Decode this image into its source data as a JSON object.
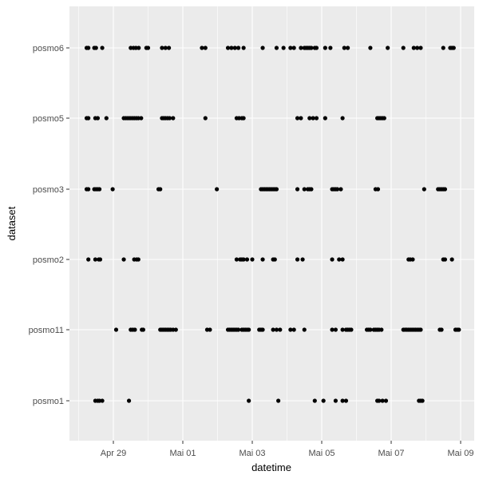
{
  "chart_data": {
    "type": "scatter",
    "title": "",
    "xlabel": "datetime",
    "ylabel": "dataset",
    "x_ticks": [
      "Apr 29",
      "Mai 01",
      "Mai 03",
      "Mai 05",
      "Mai 07",
      "Mai 09"
    ],
    "x_tick_days": [
      0,
      2,
      4,
      6,
      8,
      10
    ],
    "xlim_days": [
      -1.05,
      10.2
    ],
    "categories": [
      "posmo1",
      "posmo11",
      "posmo2",
      "posmo3",
      "posmo5",
      "posmo6"
    ],
    "grid": true,
    "legend": "none",
    "colors": {
      "panel": "#ebebeb",
      "grid": "#ffffff",
      "point": "#000000",
      "tick_text": "#4d4d4d",
      "axis_title": "#000000"
    },
    "series": [
      {
        "category": "posmo6",
        "x": [
          -0.77,
          -0.72,
          -0.55,
          -0.5,
          -0.32,
          0.5,
          0.58,
          0.65,
          0.73,
          0.95,
          1.0,
          1.4,
          1.5,
          1.6,
          2.55,
          2.65,
          3.3,
          3.4,
          3.5,
          3.6,
          3.75,
          4.3,
          4.7,
          4.9,
          5.1,
          5.2,
          5.4,
          5.5,
          5.55,
          5.6,
          5.65,
          5.7,
          5.8,
          5.85,
          6.1,
          6.25,
          6.65,
          6.75,
          7.4,
          7.9,
          8.35,
          8.65,
          8.75,
          8.85,
          9.5,
          9.7,
          9.75,
          9.8
        ]
      },
      {
        "category": "posmo5",
        "x": [
          -0.77,
          -0.72,
          -0.52,
          -0.45,
          -0.2,
          0.3,
          0.36,
          0.42,
          0.48,
          0.54,
          0.6,
          0.66,
          0.72,
          0.8,
          1.4,
          1.45,
          1.5,
          1.56,
          1.62,
          1.72,
          2.65,
          3.55,
          3.62,
          3.7,
          3.75,
          5.3,
          5.4,
          5.65,
          5.75,
          5.85,
          6.1,
          6.6,
          7.6,
          7.65,
          7.7,
          7.75,
          7.8
        ]
      },
      {
        "category": "posmo3",
        "x": [
          -0.77,
          -0.72,
          -0.55,
          -0.5,
          -0.45,
          -0.4,
          -0.02,
          1.3,
          1.35,
          2.98,
          4.25,
          4.3,
          4.35,
          4.4,
          4.45,
          4.5,
          4.55,
          4.6,
          4.65,
          4.7,
          5.3,
          5.5,
          5.6,
          5.65,
          5.7,
          6.3,
          6.35,
          6.4,
          6.45,
          6.55,
          7.55,
          7.62,
          8.95,
          9.35,
          9.4,
          9.45,
          9.5,
          9.55
        ]
      },
      {
        "category": "posmo2",
        "x": [
          -0.72,
          -0.52,
          -0.42,
          -0.38,
          0.3,
          0.6,
          0.67,
          0.72,
          3.55,
          3.65,
          3.7,
          3.75,
          3.85,
          4.0,
          4.3,
          4.6,
          4.65,
          5.3,
          5.45,
          6.3,
          6.5,
          6.6,
          8.5,
          8.55,
          8.62,
          9.5,
          9.55,
          9.75
        ]
      },
      {
        "category": "posmo11",
        "x": [
          0.08,
          0.5,
          0.56,
          0.62,
          0.82,
          0.86,
          1.35,
          1.4,
          1.45,
          1.5,
          1.55,
          1.6,
          1.65,
          1.72,
          1.8,
          2.7,
          2.78,
          3.3,
          3.35,
          3.4,
          3.45,
          3.5,
          3.55,
          3.6,
          3.7,
          3.75,
          3.8,
          3.85,
          3.9,
          4.2,
          4.25,
          4.3,
          4.6,
          4.7,
          4.8,
          5.1,
          5.2,
          5.5,
          6.3,
          6.4,
          6.6,
          6.7,
          6.75,
          6.8,
          6.85,
          7.3,
          7.35,
          7.4,
          7.5,
          7.55,
          7.6,
          7.65,
          7.72,
          8.35,
          8.4,
          8.45,
          8.5,
          8.55,
          8.6,
          8.65,
          8.7,
          8.75,
          8.8,
          8.85,
          9.4,
          9.45,
          9.85,
          9.9,
          9.95
        ]
      },
      {
        "category": "posmo1",
        "x": [
          -0.52,
          -0.45,
          -0.4,
          -0.32,
          0.45,
          3.9,
          4.75,
          5.8,
          6.05,
          6.4,
          6.6,
          6.7,
          7.6,
          7.65,
          7.75,
          7.85,
          8.8,
          8.85,
          8.9
        ]
      }
    ]
  }
}
